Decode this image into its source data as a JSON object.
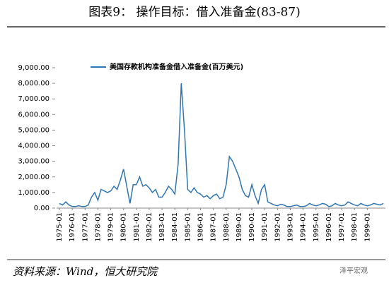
{
  "header": {
    "title": "图表9：  操作目标：借入准备金(83-87)"
  },
  "chart_data": {
    "type": "line",
    "series": [
      {
        "name": "美国存款机构准备金借入准备金(百万美元)",
        "color": "#2e75b6",
        "values": [
          300,
          200,
          400,
          200,
          100,
          100,
          150,
          100,
          100,
          200,
          700,
          1000,
          500,
          1200,
          1100,
          1000,
          1100,
          1400,
          1200,
          1800,
          2500,
          1400,
          300,
          1500,
          1500,
          2000,
          1400,
          1500,
          1300,
          1000,
          1200,
          700,
          700,
          1000,
          1400,
          1200,
          900,
          2800,
          8000,
          5000,
          1200,
          1000,
          1300,
          1000,
          900,
          700,
          800,
          600,
          800,
          900,
          600,
          700,
          1500,
          3300,
          3000,
          2500,
          2000,
          1200,
          800,
          700,
          1500,
          800,
          300,
          1200,
          1500,
          400,
          300,
          200,
          150,
          250,
          200,
          100,
          100,
          150,
          200,
          100,
          100,
          150,
          300,
          200,
          150,
          200,
          300,
          250,
          100,
          150,
          300,
          200,
          150,
          200,
          400,
          300,
          200,
          150,
          300,
          200,
          150,
          200,
          300,
          250,
          200,
          300
        ]
      }
    ],
    "x": [
      "1975-01",
      "1975-04",
      "1975-07",
      "1975-10",
      "1976-01",
      "1976-04",
      "1976-07",
      "1976-10",
      "1977-01",
      "1977-04",
      "1977-07",
      "1977-10",
      "1978-01",
      "1978-04",
      "1978-07",
      "1978-10",
      "1979-01",
      "1979-04",
      "1979-07",
      "1979-10",
      "1980-01",
      "1980-04",
      "1980-07",
      "1980-10",
      "1981-01",
      "1981-04",
      "1981-07",
      "1981-10",
      "1982-01",
      "1982-04",
      "1982-07",
      "1982-10",
      "1983-01",
      "1983-04",
      "1983-07",
      "1983-10",
      "1984-01",
      "1984-04",
      "1984-07",
      "1984-10",
      "1985-01",
      "1985-04",
      "1985-07",
      "1985-10",
      "1986-01",
      "1986-04",
      "1986-07",
      "1986-10",
      "1987-01",
      "1987-04",
      "1987-07",
      "1987-10",
      "1988-01",
      "1988-04",
      "1988-07",
      "1988-10",
      "1989-01",
      "1989-04",
      "1989-07",
      "1989-10",
      "1990-01",
      "1990-04",
      "1990-07",
      "1990-10",
      "1991-01",
      "1991-04",
      "1991-07",
      "1991-10",
      "1992-01",
      "1992-04",
      "1992-07",
      "1992-10",
      "1993-01",
      "1993-04",
      "1993-07",
      "1993-10",
      "1994-01",
      "1994-04",
      "1994-07",
      "1994-10",
      "1995-01",
      "1995-04",
      "1995-07",
      "1995-10",
      "1996-01",
      "1996-04",
      "1996-07",
      "1996-10",
      "1997-01",
      "1997-04",
      "1997-07",
      "1997-10",
      "1998-01",
      "1998-04",
      "1998-07",
      "1998-10",
      "1999-01",
      "1999-04",
      "1999-07",
      "1999-10",
      "2000-01",
      "2000-04"
    ],
    "xlim": [
      "1975-01",
      "2000-06"
    ],
    "xticks": [
      "1975-01",
      "1976-01",
      "1977-01",
      "1978-01",
      "1979-01",
      "1980-01",
      "1981-01",
      "1982-01",
      "1983-01",
      "1984-01",
      "1985-01",
      "1986-01",
      "1987-01",
      "1988-01",
      "1989-01",
      "1990-01",
      "1991-01",
      "1992-01",
      "1993-01",
      "1994-01",
      "1995-01",
      "1996-01",
      "1997-01",
      "1998-01",
      "1999-01"
    ],
    "ylim": [
      0,
      9000
    ],
    "yticks": [
      {
        "value": 0,
        "label": "0.00"
      },
      {
        "value": 1000,
        "label": "1,000.00"
      },
      {
        "value": 2000,
        "label": "2,000.00"
      },
      {
        "value": 3000,
        "label": "3,000.00"
      },
      {
        "value": 4000,
        "label": "4,000.00"
      },
      {
        "value": 5000,
        "label": "5,000.00"
      },
      {
        "value": 6000,
        "label": "6,000.00"
      },
      {
        "value": 7000,
        "label": "7,000.00"
      },
      {
        "value": 8000,
        "label": "8,000.00"
      },
      {
        "value": 9000,
        "label": "9,000.00"
      }
    ]
  },
  "footer": {
    "source": "资料来源：Wind，恒大研究院",
    "watermark": "泽平宏观"
  }
}
